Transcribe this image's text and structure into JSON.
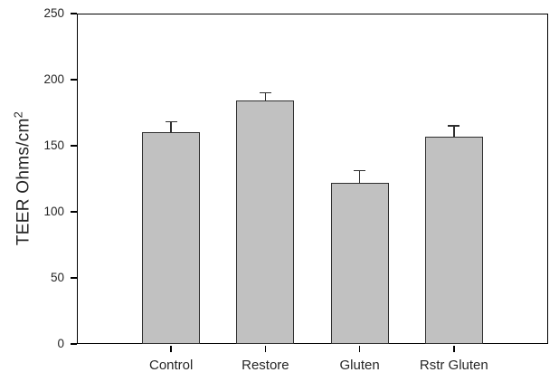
{
  "chart_data": {
    "type": "bar",
    "title": "",
    "xlabel": "",
    "ylabel": "TEER Ohms/cm^2",
    "ylabel_base": "TEER Ohms/cm",
    "ylabel_sup": "2",
    "categories": [
      "Control",
      "Restore",
      "Gluten",
      "Rstr Gluten"
    ],
    "values": [
      160,
      184,
      122,
      157
    ],
    "errors_plus": [
      8,
      6,
      9,
      8
    ],
    "y_ticks": [
      0,
      50,
      100,
      150,
      200,
      250
    ],
    "ylim": [
      0,
      250
    ],
    "grid": false,
    "legend": false,
    "error_bar_style": "upper-whisker-with-cap",
    "colors": {
      "bar_fill": "#c1c1c1",
      "bar_border": "#2f2f2f",
      "axis": "#000000",
      "error_bar": "#2f2f2f",
      "text": "#262626",
      "background": "#ffffff"
    }
  }
}
